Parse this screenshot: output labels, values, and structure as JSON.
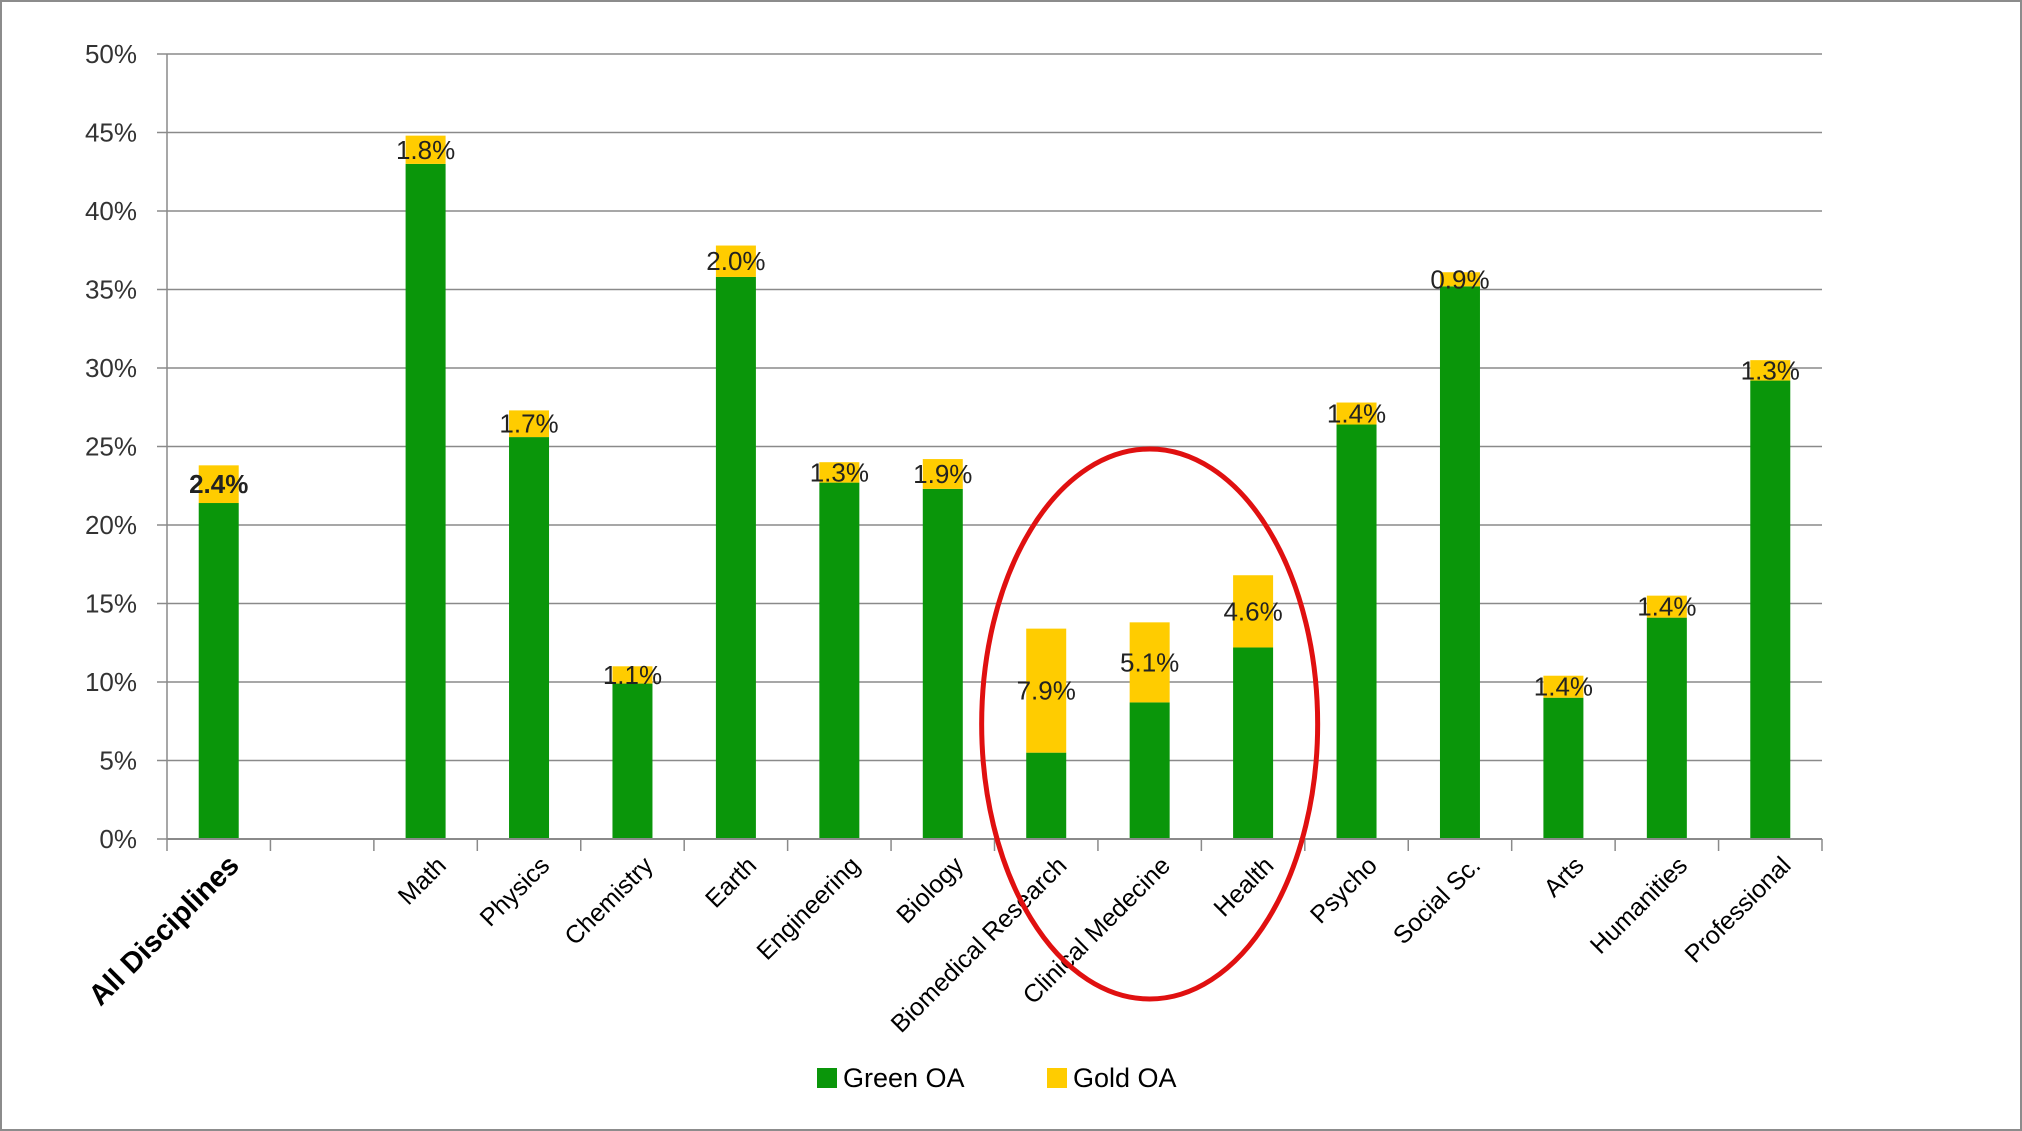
{
  "chart_data": {
    "type": "bar",
    "stacked": true,
    "categories": [
      "All Disciplines",
      "",
      "Math",
      "Physics",
      "Chemistry",
      "Earth",
      "Engineering",
      "Biology",
      "Biomedical Research",
      "Clinical Medecine",
      "Health",
      "Psycho",
      "Social Sc.",
      "Arts",
      "Humanities",
      "Professional"
    ],
    "series": [
      {
        "name": "Green OA",
        "color": "#0a960a",
        "values": [
          21.4,
          null,
          43.0,
          25.6,
          9.9,
          35.8,
          22.7,
          22.3,
          5.5,
          8.7,
          12.2,
          26.4,
          35.2,
          9.0,
          14.1,
          29.2
        ]
      },
      {
        "name": "Gold OA",
        "color": "#ffcc00",
        "values": [
          2.4,
          null,
          1.8,
          1.7,
          1.1,
          2.0,
          1.3,
          1.9,
          7.9,
          5.1,
          4.6,
          1.4,
          0.9,
          1.4,
          1.4,
          1.3
        ]
      }
    ],
    "data_labels": [
      "2.4%",
      "",
      "1.8%",
      "1.7%",
      "1.1%",
      "2.0%",
      "1.3%",
      "1.9%",
      "7.9%",
      "5.1%",
      "4.6%",
      "1.4%",
      "0.9%",
      "1.4%",
      "1.4%",
      "1.3%"
    ],
    "ylim": [
      0,
      50
    ],
    "yticks": [
      "0%",
      "5%",
      "10%",
      "15%",
      "20%",
      "25%",
      "30%",
      "35%",
      "40%",
      "45%",
      "50%"
    ],
    "xlabel": "",
    "ylabel": "",
    "title": "",
    "grid": true,
    "legend": "bottom-center",
    "annotation": {
      "shape": "ellipse",
      "color": "#e01010",
      "highlights": [
        "Biomedical Research",
        "Clinical Medecine",
        "Health"
      ]
    }
  }
}
